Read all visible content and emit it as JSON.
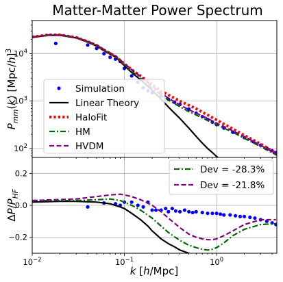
{
  "chart_data": [
    {
      "type": "line",
      "title": "Matter-Matter Power Spectrum",
      "xlabel": "",
      "ylabel": "P_mm(k) [Mpc/h]^3",
      "xscale": "log",
      "yscale": "log",
      "xlim": [
        0.01,
        4.5
      ],
      "ylim": [
        65,
        50000
      ],
      "grid": true,
      "legend_position": "lower-left",
      "xtick_labels": [],
      "ytick_labels": [
        "10^2",
        "10^3",
        "10^4"
      ],
      "ytick_values": [
        100,
        1000,
        10000
      ],
      "series": [
        {
          "name": "Simulation",
          "style": "points",
          "color": "#0000ff",
          "x": [
            0.018,
            0.04,
            0.05,
            0.06,
            0.07,
            0.08,
            0.09,
            0.1,
            0.12,
            0.14,
            0.16,
            0.18,
            0.2,
            0.25,
            0.3,
            0.35,
            0.4,
            0.5,
            0.6,
            0.7,
            0.8,
            0.9,
            1.0,
            1.2,
            1.5,
            2.0,
            2.5,
            3.0,
            3.5,
            4.0,
            4.4
          ],
          "y": [
            16500,
            15200,
            12900,
            10000,
            8400,
            7700,
            6900,
            4900,
            3400,
            2500,
            1900,
            1650,
            1500,
            1280,
            1100,
            950,
            850,
            680,
            560,
            470,
            410,
            360,
            320,
            270,
            220,
            170,
            140,
            118,
            102,
            90,
            82
          ]
        },
        {
          "name": "Linear Theory",
          "style": "solid",
          "color": "#000000",
          "x": [
            0.01,
            0.015,
            0.02,
            0.03,
            0.04,
            0.05,
            0.06,
            0.08,
            0.1,
            0.12,
            0.15,
            0.2,
            0.25,
            0.3,
            0.4,
            0.5,
            0.6,
            0.7,
            0.8,
            0.9,
            1.0,
            1.2
          ],
          "y": [
            22000,
            24500,
            24500,
            21500,
            17500,
            14500,
            11500,
            8500,
            5600,
            4000,
            2800,
            1700,
            1100,
            750,
            430,
            270,
            180,
            130,
            100,
            82,
            68,
            50
          ]
        },
        {
          "name": "HaloFit",
          "style": "dotted",
          "color": "#ff0000",
          "x": [
            0.01,
            0.015,
            0.02,
            0.03,
            0.04,
            0.05,
            0.06,
            0.08,
            0.1,
            0.12,
            0.15,
            0.2,
            0.25,
            0.3,
            0.4,
            0.5,
            0.6,
            0.8,
            1.0,
            1.5,
            2.0,
            3.0,
            4.5
          ],
          "y": [
            22500,
            25000,
            25000,
            22000,
            18000,
            15000,
            12000,
            8800,
            6100,
            4600,
            3400,
            2200,
            1650,
            1350,
            1000,
            820,
            690,
            510,
            400,
            260,
            190,
            125,
            78
          ]
        },
        {
          "name": "HM",
          "style": "dashdot",
          "color": "#006400",
          "x": [
            0.01,
            0.015,
            0.02,
            0.03,
            0.04,
            0.05,
            0.06,
            0.08,
            0.1,
            0.12,
            0.15,
            0.2,
            0.25,
            0.3,
            0.4,
            0.5,
            0.6,
            0.8,
            1.0,
            1.5,
            2.0,
            3.0,
            4.5
          ],
          "y": [
            22500,
            24800,
            24900,
            22000,
            18000,
            15000,
            12000,
            8700,
            5900,
            4300,
            3000,
            1850,
            1350,
            1050,
            760,
            600,
            510,
            390,
            320,
            220,
            165,
            110,
            72
          ]
        },
        {
          "name": "HVDM",
          "style": "dashed",
          "color": "#800080",
          "x": [
            0.01,
            0.015,
            0.02,
            0.03,
            0.04,
            0.05,
            0.06,
            0.08,
            0.1,
            0.12,
            0.15,
            0.2,
            0.25,
            0.3,
            0.4,
            0.5,
            0.6,
            0.8,
            1.0,
            1.5,
            2.0,
            3.0,
            4.5
          ],
          "y": [
            22500,
            24900,
            25000,
            22200,
            18200,
            15300,
            12300,
            9000,
            6200,
            4600,
            3300,
            2050,
            1480,
            1150,
            830,
            660,
            560,
            430,
            345,
            235,
            178,
            118,
            75
          ]
        }
      ]
    },
    {
      "type": "line",
      "title": "",
      "xlabel": "k [h/Mpc]",
      "ylabel": "ΔP/P_HF",
      "xscale": "log",
      "xlim": [
        0.01,
        4.5
      ],
      "ylim": [
        -0.3,
        0.3
      ],
      "grid": true,
      "legend_position": "top-right",
      "xtick_labels": [
        "10^-2",
        "10^-1",
        "10^0"
      ],
      "xtick_values": [
        0.01,
        0.1,
        1
      ],
      "ytick_labels": [
        "−0.2",
        "0.0",
        "0.2"
      ],
      "ytick_values": [
        -0.2,
        0.0,
        0.2
      ],
      "legend_entries": [
        "Dev = -28.3%",
        "Dev = -21.8%"
      ],
      "series": [
        {
          "name": "Simulation",
          "style": "points",
          "color": "#0000ff",
          "x": [
            0.04,
            0.06,
            0.08,
            0.09,
            0.1,
            0.12,
            0.14,
            0.16,
            0.18,
            0.2,
            0.22,
            0.25,
            0.28,
            0.3,
            0.33,
            0.36,
            0.4,
            0.45,
            0.5,
            0.55,
            0.6,
            0.7,
            0.8,
            0.9,
            1.0,
            1.1,
            1.2,
            1.4,
            1.6,
            1.8,
            2.0,
            2.3,
            2.6,
            3.0,
            3.5,
            4.0,
            4.4
          ],
          "y": [
            -0.01,
            0.015,
            0.01,
            0.0,
            0.02,
            0.02,
            0.0,
            -0.01,
            0.02,
            -0.03,
            -0.03,
            -0.03,
            -0.02,
            -0.04,
            -0.02,
            -0.035,
            -0.04,
            -0.03,
            -0.04,
            -0.045,
            -0.04,
            -0.045,
            -0.05,
            -0.05,
            -0.05,
            -0.055,
            -0.06,
            -0.06,
            -0.065,
            -0.07,
            -0.07,
            -0.075,
            -0.08,
            -0.09,
            -0.1,
            -0.11,
            -0.12
          ]
        },
        {
          "name": "Linear Theory",
          "style": "solid",
          "color": "#000000",
          "x": [
            0.01,
            0.02,
            0.03,
            0.05,
            0.07,
            0.09,
            0.1,
            0.12,
            0.15,
            0.18,
            0.2,
            0.25,
            0.3,
            0.35,
            0.4,
            0.5,
            0.6
          ],
          "y": [
            0.02,
            0.025,
            0.025,
            0.02,
            0.01,
            -0.01,
            -0.02,
            -0.05,
            -0.09,
            -0.13,
            -0.16,
            -0.21,
            -0.24,
            -0.26,
            -0.28,
            -0.3,
            -0.32
          ]
        },
        {
          "name": "HM",
          "legend_label": "Dev = -28.3%",
          "style": "dashdot",
          "color": "#006400",
          "x": [
            0.01,
            0.03,
            0.05,
            0.07,
            0.09,
            0.1,
            0.12,
            0.15,
            0.2,
            0.25,
            0.3,
            0.4,
            0.5,
            0.6,
            0.7,
            0.8,
            0.9,
            1.0,
            1.2,
            1.5,
            2.0,
            3.0,
            4.4
          ],
          "y": [
            0.03,
            0.03,
            0.035,
            0.04,
            0.03,
            0.02,
            0.0,
            -0.03,
            -0.08,
            -0.13,
            -0.17,
            -0.22,
            -0.25,
            -0.265,
            -0.275,
            -0.28,
            -0.275,
            -0.265,
            -0.235,
            -0.19,
            -0.15,
            -0.12,
            -0.115
          ]
        },
        {
          "name": "HVDM",
          "legend_label": "Dev = -21.8%",
          "style": "dashed",
          "color": "#800080",
          "x": [
            0.01,
            0.03,
            0.05,
            0.07,
            0.09,
            0.1,
            0.12,
            0.15,
            0.2,
            0.25,
            0.3,
            0.4,
            0.5,
            0.6,
            0.7,
            0.8,
            0.9,
            1.0,
            1.2,
            1.5,
            2.0,
            3.0,
            4.4
          ],
          "y": [
            0.03,
            0.04,
            0.055,
            0.065,
            0.07,
            0.065,
            0.055,
            0.035,
            0.0,
            -0.04,
            -0.08,
            -0.14,
            -0.18,
            -0.2,
            -0.21,
            -0.215,
            -0.215,
            -0.21,
            -0.19,
            -0.16,
            -0.12,
            -0.09,
            -0.09
          ]
        }
      ]
    }
  ]
}
